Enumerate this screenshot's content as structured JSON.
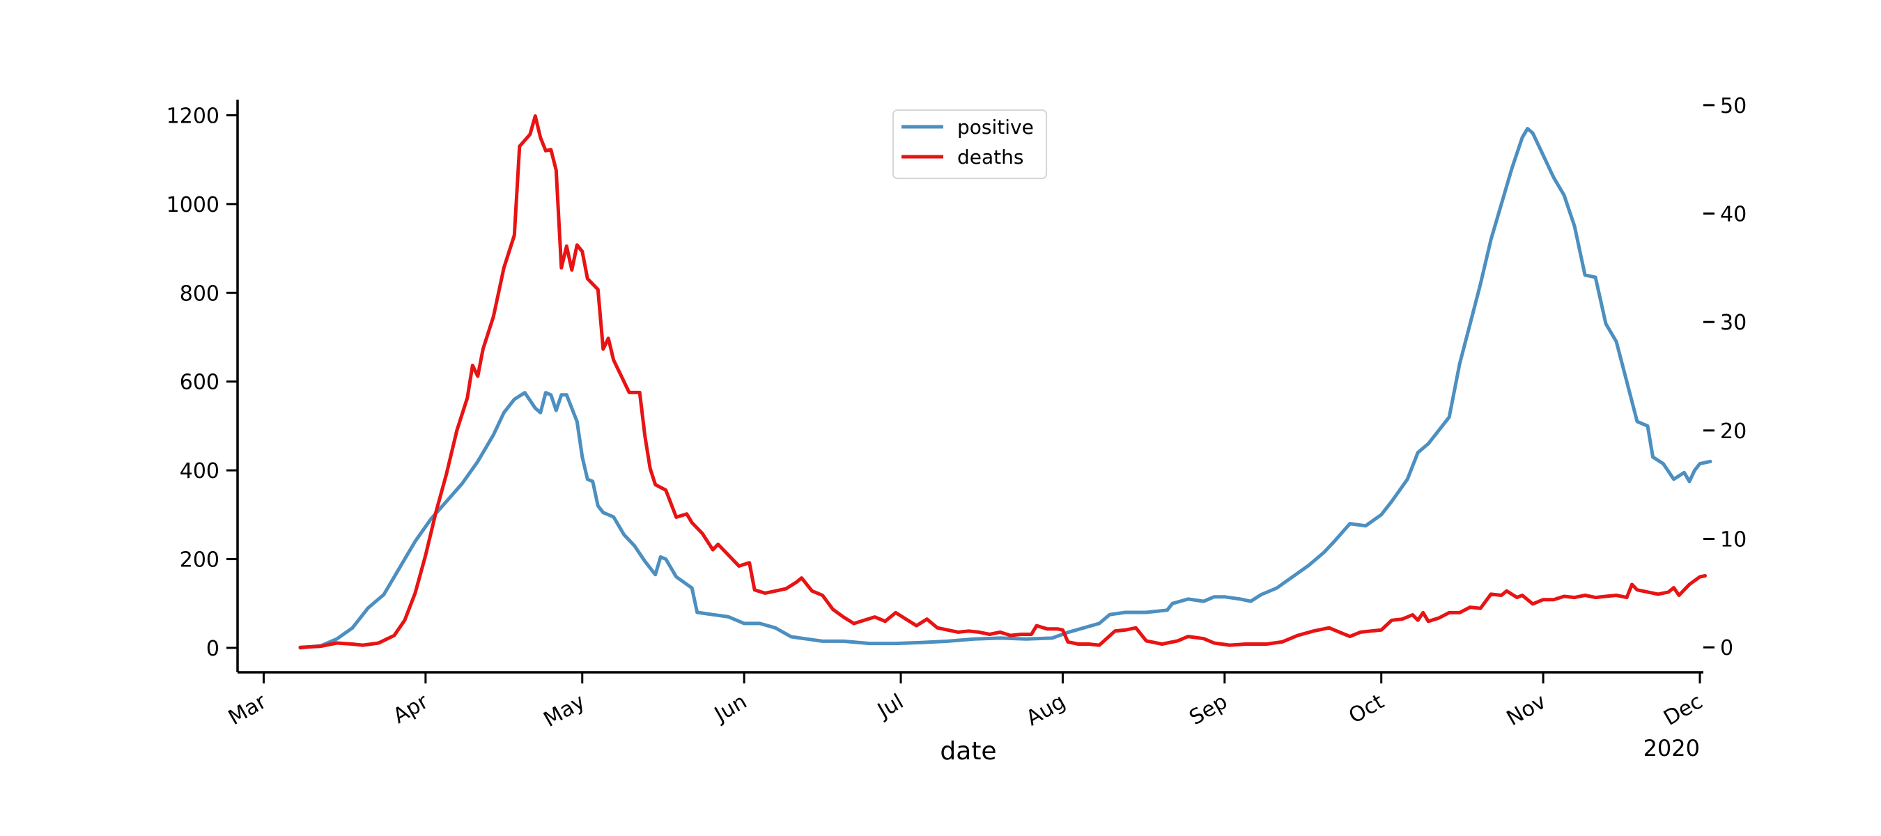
{
  "chart_data": {
    "type": "line",
    "xlabel": "date",
    "year_label": "2020",
    "x_tick_labels": [
      "Mar",
      "Apr",
      "May",
      "Jun",
      "Jul",
      "Aug",
      "Sep",
      "Oct",
      "Nov",
      "Dec"
    ],
    "x_tick_dates": [
      "2020-03-01",
      "2020-04-01",
      "2020-05-01",
      "2020-06-01",
      "2020-07-01",
      "2020-08-01",
      "2020-09-01",
      "2020-10-01",
      "2020-11-01",
      "2020-12-01"
    ],
    "xlim": [
      "2020-02-25",
      "2020-12-01"
    ],
    "left_axis": {
      "ylim": [
        -55,
        1240
      ],
      "ticks": [
        0,
        200,
        400,
        600,
        800,
        1000,
        1200
      ]
    },
    "right_axis": {
      "ylim": [
        -2.3,
        50.7
      ],
      "ticks": [
        0,
        10,
        20,
        30,
        40,
        50
      ]
    },
    "legend": {
      "placement": "top-center",
      "entries": [
        "positive",
        "deaths"
      ]
    },
    "grid": false,
    "series": [
      {
        "name": "positive",
        "axis": "left",
        "color": "#4c8fc0",
        "points": [
          [
            "2020-03-08",
            0
          ],
          [
            "2020-03-12",
            5
          ],
          [
            "2020-03-15",
            20
          ],
          [
            "2020-03-18",
            45
          ],
          [
            "2020-03-21",
            90
          ],
          [
            "2020-03-24",
            120
          ],
          [
            "2020-03-27",
            180
          ],
          [
            "2020-03-30",
            240
          ],
          [
            "2020-04-02",
            290
          ],
          [
            "2020-04-05",
            330
          ],
          [
            "2020-04-08",
            370
          ],
          [
            "2020-04-11",
            420
          ],
          [
            "2020-04-14",
            480
          ],
          [
            "2020-04-16",
            530
          ],
          [
            "2020-04-18",
            560
          ],
          [
            "2020-04-20",
            575
          ],
          [
            "2020-04-22",
            540
          ],
          [
            "2020-04-23",
            530
          ],
          [
            "2020-04-24",
            575
          ],
          [
            "2020-04-25",
            570
          ],
          [
            "2020-04-26",
            535
          ],
          [
            "2020-04-27",
            570
          ],
          [
            "2020-04-28",
            570
          ],
          [
            "2020-04-30",
            510
          ],
          [
            "2020-05-01",
            430
          ],
          [
            "2020-05-02",
            380
          ],
          [
            "2020-05-03",
            375
          ],
          [
            "2020-05-04",
            320
          ],
          [
            "2020-05-05",
            305
          ],
          [
            "2020-05-07",
            295
          ],
          [
            "2020-05-09",
            255
          ],
          [
            "2020-05-11",
            230
          ],
          [
            "2020-05-13",
            195
          ],
          [
            "2020-05-15",
            165
          ],
          [
            "2020-05-16",
            205
          ],
          [
            "2020-05-17",
            200
          ],
          [
            "2020-05-19",
            160
          ],
          [
            "2020-05-22",
            135
          ],
          [
            "2020-05-23",
            80
          ],
          [
            "2020-05-26",
            75
          ],
          [
            "2020-05-29",
            70
          ],
          [
            "2020-06-01",
            55
          ],
          [
            "2020-06-04",
            55
          ],
          [
            "2020-06-07",
            45
          ],
          [
            "2020-06-10",
            25
          ],
          [
            "2020-06-13",
            20
          ],
          [
            "2020-06-16",
            15
          ],
          [
            "2020-06-20",
            15
          ],
          [
            "2020-06-25",
            10
          ],
          [
            "2020-06-30",
            10
          ],
          [
            "2020-07-05",
            12
          ],
          [
            "2020-07-10",
            15
          ],
          [
            "2020-07-15",
            20
          ],
          [
            "2020-07-20",
            22
          ],
          [
            "2020-07-25",
            20
          ],
          [
            "2020-07-30",
            22
          ],
          [
            "2020-08-02",
            35
          ],
          [
            "2020-08-05",
            45
          ],
          [
            "2020-08-08",
            55
          ],
          [
            "2020-08-10",
            75
          ],
          [
            "2020-08-13",
            80
          ],
          [
            "2020-08-17",
            80
          ],
          [
            "2020-08-21",
            85
          ],
          [
            "2020-08-22",
            100
          ],
          [
            "2020-08-25",
            110
          ],
          [
            "2020-08-28",
            105
          ],
          [
            "2020-08-30",
            115
          ],
          [
            "2020-09-01",
            115
          ],
          [
            "2020-09-04",
            110
          ],
          [
            "2020-09-06",
            105
          ],
          [
            "2020-09-08",
            120
          ],
          [
            "2020-09-11",
            135
          ],
          [
            "2020-09-14",
            160
          ],
          [
            "2020-09-17",
            185
          ],
          [
            "2020-09-20",
            215
          ],
          [
            "2020-09-22",
            240
          ],
          [
            "2020-09-25",
            280
          ],
          [
            "2020-09-28",
            275
          ],
          [
            "2020-10-01",
            300
          ],
          [
            "2020-10-03",
            330
          ],
          [
            "2020-10-06",
            380
          ],
          [
            "2020-10-08",
            440
          ],
          [
            "2020-10-10",
            460
          ],
          [
            "2020-10-12",
            490
          ],
          [
            "2020-10-14",
            520
          ],
          [
            "2020-10-16",
            640
          ],
          [
            "2020-10-18",
            730
          ],
          [
            "2020-10-20",
            820
          ],
          [
            "2020-10-22",
            920
          ],
          [
            "2020-10-24",
            1000
          ],
          [
            "2020-10-26",
            1080
          ],
          [
            "2020-10-28",
            1150
          ],
          [
            "2020-10-29",
            1170
          ],
          [
            "2020-10-30",
            1160
          ],
          [
            "2020-11-01",
            1110
          ],
          [
            "2020-11-03",
            1060
          ],
          [
            "2020-11-05",
            1020
          ],
          [
            "2020-11-07",
            950
          ],
          [
            "2020-11-09",
            840
          ],
          [
            "2020-11-11",
            835
          ],
          [
            "2020-11-13",
            730
          ],
          [
            "2020-11-15",
            690
          ],
          [
            "2020-11-17",
            600
          ],
          [
            "2020-11-19",
            510
          ],
          [
            "2020-11-21",
            500
          ],
          [
            "2020-11-22",
            430
          ],
          [
            "2020-11-24",
            415
          ],
          [
            "2020-11-26",
            380
          ],
          [
            "2020-11-28",
            395
          ],
          [
            "2020-11-29",
            375
          ],
          [
            "2020-11-30",
            400
          ],
          [
            "2020-12-01",
            415
          ],
          [
            "2020-12-03",
            420
          ]
        ]
      },
      {
        "name": "deaths",
        "axis": "right",
        "color": "#e81313",
        "points": [
          [
            "2020-03-08",
            0
          ],
          [
            "2020-03-12",
            0.1
          ],
          [
            "2020-03-15",
            0.4
          ],
          [
            "2020-03-18",
            0.3
          ],
          [
            "2020-03-20",
            0.2
          ],
          [
            "2020-03-23",
            0.4
          ],
          [
            "2020-03-26",
            1.1
          ],
          [
            "2020-03-28",
            2.5
          ],
          [
            "2020-03-30",
            5.0
          ],
          [
            "2020-04-01",
            8.5
          ],
          [
            "2020-04-03",
            12.5
          ],
          [
            "2020-04-05",
            16.0
          ],
          [
            "2020-04-07",
            20.0
          ],
          [
            "2020-04-09",
            23.0
          ],
          [
            "2020-04-10",
            26.0
          ],
          [
            "2020-04-11",
            25.0
          ],
          [
            "2020-04-12",
            27.5
          ],
          [
            "2020-04-14",
            30.5
          ],
          [
            "2020-04-16",
            35.0
          ],
          [
            "2020-04-18",
            38.0
          ],
          [
            "2020-04-19",
            46.2
          ],
          [
            "2020-04-21",
            47.3
          ],
          [
            "2020-04-22",
            49.0
          ],
          [
            "2020-04-23",
            47.0
          ],
          [
            "2020-04-24",
            45.8
          ],
          [
            "2020-04-25",
            45.9
          ],
          [
            "2020-04-26",
            44.0
          ],
          [
            "2020-04-27",
            35.0
          ],
          [
            "2020-04-28",
            37.0
          ],
          [
            "2020-04-29",
            34.8
          ],
          [
            "2020-04-30",
            37.1
          ],
          [
            "2020-05-01",
            36.5
          ],
          [
            "2020-05-02",
            34.0
          ],
          [
            "2020-05-04",
            33.0
          ],
          [
            "2020-05-05",
            27.5
          ],
          [
            "2020-05-06",
            28.5
          ],
          [
            "2020-05-07",
            26.5
          ],
          [
            "2020-05-09",
            24.5
          ],
          [
            "2020-05-10",
            23.5
          ],
          [
            "2020-05-12",
            23.5
          ],
          [
            "2020-05-13",
            19.5
          ],
          [
            "2020-05-14",
            16.5
          ],
          [
            "2020-05-15",
            15.0
          ],
          [
            "2020-05-17",
            14.5
          ],
          [
            "2020-05-19",
            12.0
          ],
          [
            "2020-05-21",
            12.3
          ],
          [
            "2020-05-22",
            11.5
          ],
          [
            "2020-05-24",
            10.5
          ],
          [
            "2020-05-26",
            9.0
          ],
          [
            "2020-05-27",
            9.5
          ],
          [
            "2020-05-29",
            8.5
          ],
          [
            "2020-05-31",
            7.5
          ],
          [
            "2020-06-02",
            7.8
          ],
          [
            "2020-06-03",
            5.3
          ],
          [
            "2020-06-05",
            5.0
          ],
          [
            "2020-06-07",
            5.2
          ],
          [
            "2020-06-09",
            5.4
          ],
          [
            "2020-06-11",
            6.0
          ],
          [
            "2020-06-12",
            6.4
          ],
          [
            "2020-06-14",
            5.2
          ],
          [
            "2020-06-16",
            4.8
          ],
          [
            "2020-06-18",
            3.5
          ],
          [
            "2020-06-20",
            2.8
          ],
          [
            "2020-06-22",
            2.2
          ],
          [
            "2020-06-24",
            2.5
          ],
          [
            "2020-06-26",
            2.8
          ],
          [
            "2020-06-28",
            2.4
          ],
          [
            "2020-06-30",
            3.2
          ],
          [
            "2020-07-02",
            2.6
          ],
          [
            "2020-07-04",
            2.0
          ],
          [
            "2020-07-06",
            2.6
          ],
          [
            "2020-07-08",
            1.8
          ],
          [
            "2020-07-10",
            1.6
          ],
          [
            "2020-07-12",
            1.4
          ],
          [
            "2020-07-14",
            1.5
          ],
          [
            "2020-07-16",
            1.4
          ],
          [
            "2020-07-18",
            1.2
          ],
          [
            "2020-07-20",
            1.4
          ],
          [
            "2020-07-22",
            1.1
          ],
          [
            "2020-07-24",
            1.2
          ],
          [
            "2020-07-26",
            1.2
          ],
          [
            "2020-07-27",
            2.0
          ],
          [
            "2020-07-29",
            1.7
          ],
          [
            "2020-07-31",
            1.7
          ],
          [
            "2020-08-01",
            1.6
          ],
          [
            "2020-08-02",
            0.5
          ],
          [
            "2020-08-04",
            0.3
          ],
          [
            "2020-08-06",
            0.3
          ],
          [
            "2020-08-08",
            0.2
          ],
          [
            "2020-08-11",
            1.5
          ],
          [
            "2020-08-13",
            1.6
          ],
          [
            "2020-08-15",
            1.8
          ],
          [
            "2020-08-17",
            0.6
          ],
          [
            "2020-08-20",
            0.3
          ],
          [
            "2020-08-23",
            0.6
          ],
          [
            "2020-08-25",
            1.0
          ],
          [
            "2020-08-28",
            0.8
          ],
          [
            "2020-08-30",
            0.4
          ],
          [
            "2020-09-02",
            0.2
          ],
          [
            "2020-09-05",
            0.3
          ],
          [
            "2020-09-09",
            0.3
          ],
          [
            "2020-09-12",
            0.5
          ],
          [
            "2020-09-15",
            1.1
          ],
          [
            "2020-09-18",
            1.5
          ],
          [
            "2020-09-21",
            1.8
          ],
          [
            "2020-09-23",
            1.4
          ],
          [
            "2020-09-25",
            1.0
          ],
          [
            "2020-09-27",
            1.4
          ],
          [
            "2020-09-29",
            1.5
          ],
          [
            "2020-10-01",
            1.6
          ],
          [
            "2020-10-03",
            2.5
          ],
          [
            "2020-10-05",
            2.6
          ],
          [
            "2020-10-07",
            3.0
          ],
          [
            "2020-10-08",
            2.5
          ],
          [
            "2020-10-09",
            3.2
          ],
          [
            "2020-10-10",
            2.4
          ],
          [
            "2020-10-12",
            2.7
          ],
          [
            "2020-10-14",
            3.2
          ],
          [
            "2020-10-16",
            3.2
          ],
          [
            "2020-10-18",
            3.7
          ],
          [
            "2020-10-20",
            3.6
          ],
          [
            "2020-10-22",
            4.9
          ],
          [
            "2020-10-24",
            4.8
          ],
          [
            "2020-10-25",
            5.2
          ],
          [
            "2020-10-27",
            4.6
          ],
          [
            "2020-10-28",
            4.8
          ],
          [
            "2020-10-30",
            4.0
          ],
          [
            "2020-11-01",
            4.4
          ],
          [
            "2020-11-03",
            4.4
          ],
          [
            "2020-11-05",
            4.7
          ],
          [
            "2020-11-07",
            4.6
          ],
          [
            "2020-11-09",
            4.8
          ],
          [
            "2020-11-11",
            4.6
          ],
          [
            "2020-11-13",
            4.7
          ],
          [
            "2020-11-15",
            4.8
          ],
          [
            "2020-11-17",
            4.6
          ],
          [
            "2020-11-18",
            5.8
          ],
          [
            "2020-11-19",
            5.3
          ],
          [
            "2020-11-21",
            5.1
          ],
          [
            "2020-11-23",
            4.9
          ],
          [
            "2020-11-25",
            5.1
          ],
          [
            "2020-11-26",
            5.5
          ],
          [
            "2020-11-27",
            4.8
          ],
          [
            "2020-11-29",
            5.8
          ],
          [
            "2020-12-01",
            6.5
          ],
          [
            "2020-12-02",
            6.6
          ]
        ]
      }
    ]
  }
}
